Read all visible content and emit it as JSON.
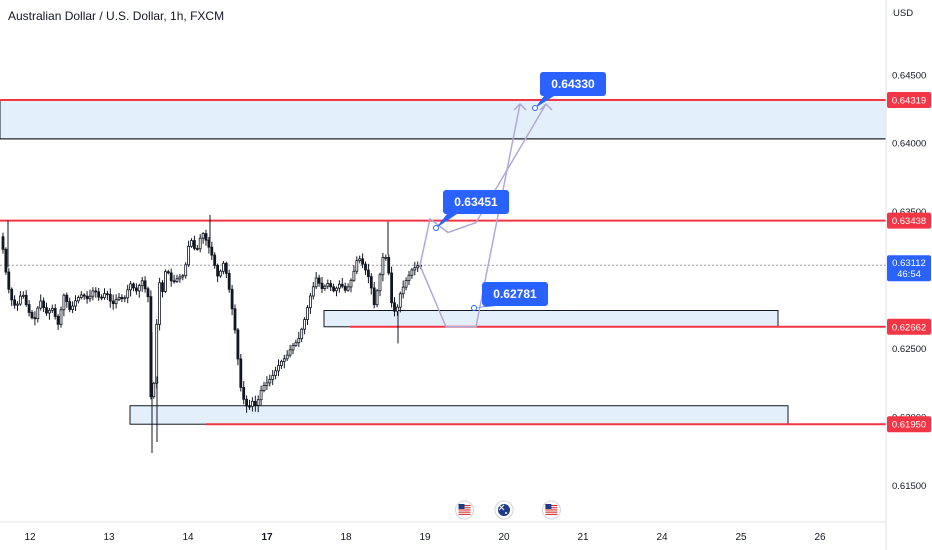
{
  "chart_data": {
    "type": "candlestick",
    "title": "Australian Dollar / U.S. Dollar, 1h, FXCM",
    "currency": "USD",
    "ylim": [
      0.6125,
      0.6505
    ],
    "y_ticks": [
      "0.64500",
      "0.64000",
      "0.63500",
      "0.62500",
      "0.62000",
      "0.61500"
    ],
    "x_ticks": [
      {
        "label": "12",
        "day": 0
      },
      {
        "label": "13",
        "day": 1
      },
      {
        "label": "14",
        "day": 2
      },
      {
        "label": "17",
        "day": 3
      },
      {
        "label": "18",
        "day": 4
      },
      {
        "label": "19",
        "day": 5
      },
      {
        "label": "20",
        "day": 6
      },
      {
        "label": "21",
        "day": 7
      },
      {
        "label": "24",
        "day": 8
      },
      {
        "label": "25",
        "day": 9
      },
      {
        "label": "26",
        "day": 10
      }
    ],
    "candle_path": [
      [
        0.632,
        0
      ],
      [
        0.6338,
        3
      ],
      [
        0.6314,
        6
      ],
      [
        0.6288,
        12
      ],
      [
        0.628,
        18
      ],
      [
        0.6292,
        24
      ],
      [
        0.6278,
        30
      ],
      [
        0.627,
        36
      ],
      [
        0.6286,
        42
      ],
      [
        0.6276,
        48
      ],
      [
        0.628,
        54
      ],
      [
        0.6268,
        60
      ],
      [
        0.629,
        66
      ],
      [
        0.6278,
        72
      ],
      [
        0.6286,
        78
      ],
      [
        0.629,
        84
      ],
      [
        0.6286,
        90
      ],
      [
        0.6294,
        96
      ],
      [
        0.6286,
        102
      ],
      [
        0.6292,
        108
      ],
      [
        0.6282,
        114
      ],
      [
        0.6288,
        120
      ],
      [
        0.6286,
        126
      ],
      [
        0.6298,
        132
      ],
      [
        0.6292,
        138
      ],
      [
        0.63,
        144
      ],
      [
        0.6288,
        150
      ],
      [
        0.621,
        153
      ],
      [
        0.6196,
        154
      ],
      [
        0.623,
        156
      ],
      [
        0.626,
        158
      ],
      [
        0.63,
        161
      ],
      [
        0.629,
        164
      ],
      [
        0.631,
        168
      ],
      [
        0.6298,
        174
      ],
      [
        0.6302,
        180
      ],
      [
        0.6304,
        186
      ],
      [
        0.6332,
        192
      ],
      [
        0.632,
        198
      ],
      [
        0.6336,
        204
      ],
      [
        0.6326,
        210
      ],
      [
        0.6318,
        214
      ],
      [
        0.6302,
        220
      ],
      [
        0.6314,
        226
      ],
      [
        0.629,
        232
      ],
      [
        0.6258,
        238
      ],
      [
        0.6224,
        242
      ],
      [
        0.6212,
        246
      ],
      [
        0.6206,
        250
      ],
      [
        0.6212,
        254
      ],
      [
        0.6208,
        258
      ],
      [
        0.6222,
        264
      ],
      [
        0.6226,
        270
      ],
      [
        0.6232,
        276
      ],
      [
        0.624,
        282
      ],
      [
        0.6244,
        288
      ],
      [
        0.6252,
        294
      ],
      [
        0.6256,
        300
      ],
      [
        0.627,
        306
      ],
      [
        0.6288,
        312
      ],
      [
        0.6302,
        318
      ],
      [
        0.6294,
        324
      ],
      [
        0.6298,
        330
      ],
      [
        0.6292,
        336
      ],
      [
        0.6298,
        342
      ],
      [
        0.6292,
        348
      ],
      [
        0.6302,
        354
      ],
      [
        0.6318,
        360
      ],
      [
        0.631,
        366
      ],
      [
        0.63,
        372
      ],
      [
        0.6282,
        376
      ],
      [
        0.6296,
        380
      ],
      [
        0.6322,
        386
      ],
      [
        0.631,
        390
      ],
      [
        0.628,
        394
      ],
      [
        0.6276,
        398
      ],
      [
        0.629,
        402
      ],
      [
        0.63,
        408
      ],
      [
        0.6308,
        414
      ],
      [
        0.6311,
        420
      ]
    ],
    "wicks": [
      [
        0.6344,
        7
      ],
      [
        0.6348,
        209
      ],
      [
        0.6343,
        387
      ],
      [
        0.6254,
        397
      ],
      [
        0.6174,
        151
      ],
      [
        0.6182,
        156
      ]
    ],
    "levels": [
      {
        "label": "0.64319",
        "price": 0.64319
      },
      {
        "label": "0.63438",
        "price": 0.63438
      },
      {
        "label": "0.62662",
        "price": 0.62662
      },
      {
        "label": "0.61950",
        "price": 0.6195
      }
    ],
    "zones": [
      {
        "from": 0.64035,
        "to": 0.64319
      },
      {
        "from": 0.62662,
        "to": 0.62781
      },
      {
        "from": 0.6195,
        "to": 0.62085
      }
    ],
    "last_price": {
      "value": "0.63112",
      "countdown": "46:54",
      "price": 0.63112
    },
    "targets": [
      {
        "label": "0.64330",
        "price": 0.6433
      },
      {
        "label": "0.63451",
        "price": 0.63451
      },
      {
        "label": "0.62781",
        "price": 0.62781
      }
    ],
    "events": [
      {
        "icon": "us-flag-icon",
        "day": 5.5
      },
      {
        "icon": "au-flag-icon",
        "day": 6.0
      },
      {
        "icon": "us-flag-icon",
        "day": 6.6
      }
    ],
    "colors": {
      "up": "#ffffff",
      "down": "#131722",
      "level": "#f23645",
      "zone_fill": "#e3f0fc",
      "target": "#2962ff",
      "projection": "#b2a8d8",
      "grid": "#f0f3fa"
    }
  }
}
